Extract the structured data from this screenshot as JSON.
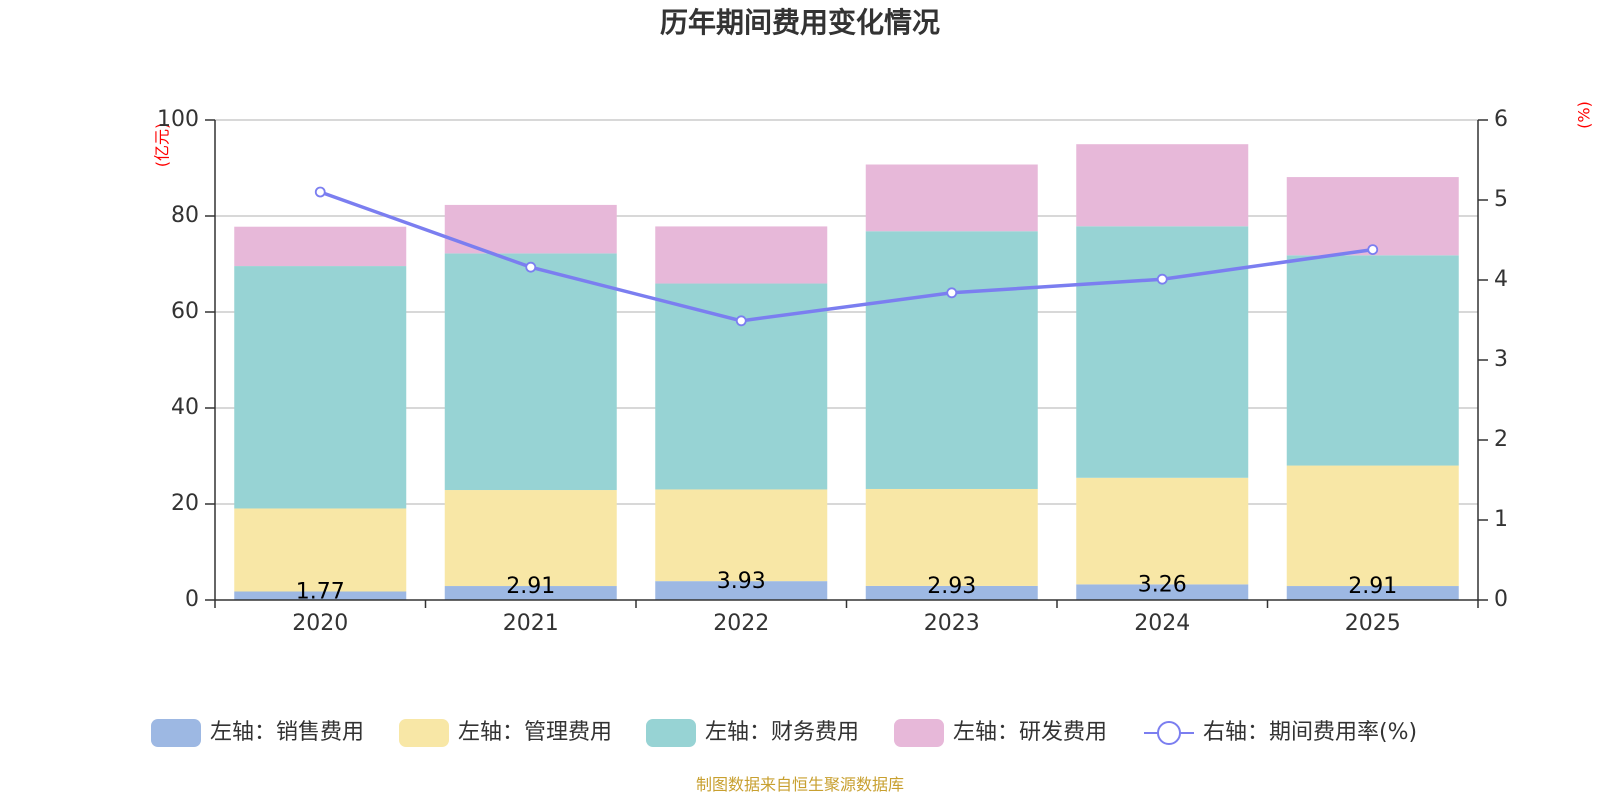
{
  "chart_data": {
    "type": "bar",
    "stacked": true,
    "title": "历年期间费用变化情况",
    "categories": [
      "2020",
      "2021",
      "2022",
      "2023",
      "2024",
      "2025"
    ],
    "y_left": {
      "unit": "(亿元)",
      "ylim": [
        0,
        100
      ],
      "ticks": [
        "0",
        "20",
        "40",
        "60",
        "80",
        "100"
      ]
    },
    "y_right": {
      "unit": "(%)",
      "ylim": [
        0,
        6
      ],
      "ticks": [
        "0",
        "1",
        "2",
        "3",
        "4",
        "5",
        "6"
      ]
    },
    "series": [
      {
        "name": "左轴：销售费用",
        "axis": "left",
        "color": "#9db8e3",
        "values": [
          1.77,
          2.91,
          3.93,
          2.93,
          3.26,
          2.91
        ],
        "labels": [
          "1.77",
          "2.91",
          "3.93",
          "2.93",
          "3.26",
          "2.91"
        ]
      },
      {
        "name": "左轴：管理费用",
        "axis": "left",
        "color": "#f8e7a6",
        "values": [
          17.3,
          20.0,
          19.1,
          20.2,
          22.2,
          25.1
        ]
      },
      {
        "name": "左轴：财务费用",
        "axis": "left",
        "color": "#97d3d4",
        "values": [
          50.5,
          49.3,
          42.9,
          53.7,
          52.4,
          43.8
        ]
      },
      {
        "name": "左轴：研发费用",
        "axis": "left",
        "color": "#e7b8d9",
        "values": [
          8.2,
          10.1,
          11.9,
          13.9,
          17.1,
          16.3
        ]
      },
      {
        "name": "右轴：期间费用率(%)",
        "axis": "right",
        "type": "line",
        "color": "#7b7ef0",
        "values": [
          5.1,
          4.16,
          3.49,
          3.84,
          4.01,
          4.38
        ]
      }
    ]
  },
  "source": "制图数据来自恒生聚源数据库"
}
